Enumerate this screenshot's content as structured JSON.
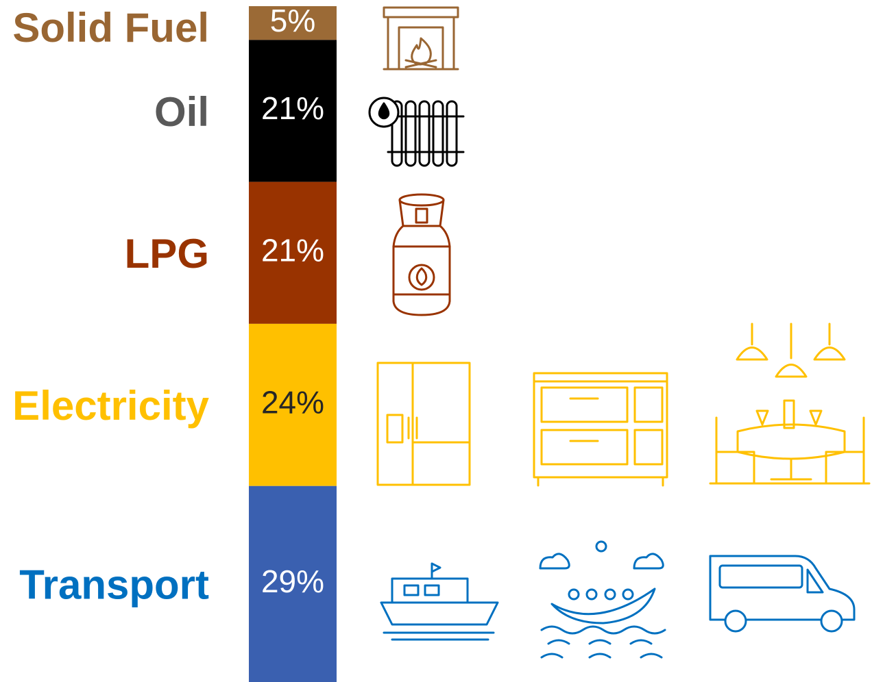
{
  "chart_data": {
    "type": "stacked_bar",
    "ylim": [
      0,
      100
    ],
    "series": [
      {
        "name": "Solid Fuel",
        "color": "#9B6A36",
        "label_color": "#996633",
        "value_color": "#ffffff",
        "values": [
          5
        ],
        "value_labels": [
          "5%"
        ]
      },
      {
        "name": "Oil",
        "color": "#000000",
        "label_color": "#595959",
        "value_color": "#ffffff",
        "values": [
          21
        ],
        "value_labels": [
          "21%"
        ]
      },
      {
        "name": "LPG",
        "color": "#993300",
        "label_color": "#993300",
        "value_color": "#ffffff",
        "values": [
          21
        ],
        "value_labels": [
          "21%"
        ]
      },
      {
        "name": "Electricity",
        "color": "#FFC000",
        "label_color": "#FFC000",
        "value_color": "#262626",
        "values": [
          24
        ],
        "value_labels": [
          "24%"
        ]
      },
      {
        "name": "Transport",
        "color": "#3A60B0",
        "label_color": "#0070C0",
        "value_color": "#ffffff",
        "values": [
          29
        ],
        "value_labels": [
          "29%"
        ]
      }
    ]
  }
}
